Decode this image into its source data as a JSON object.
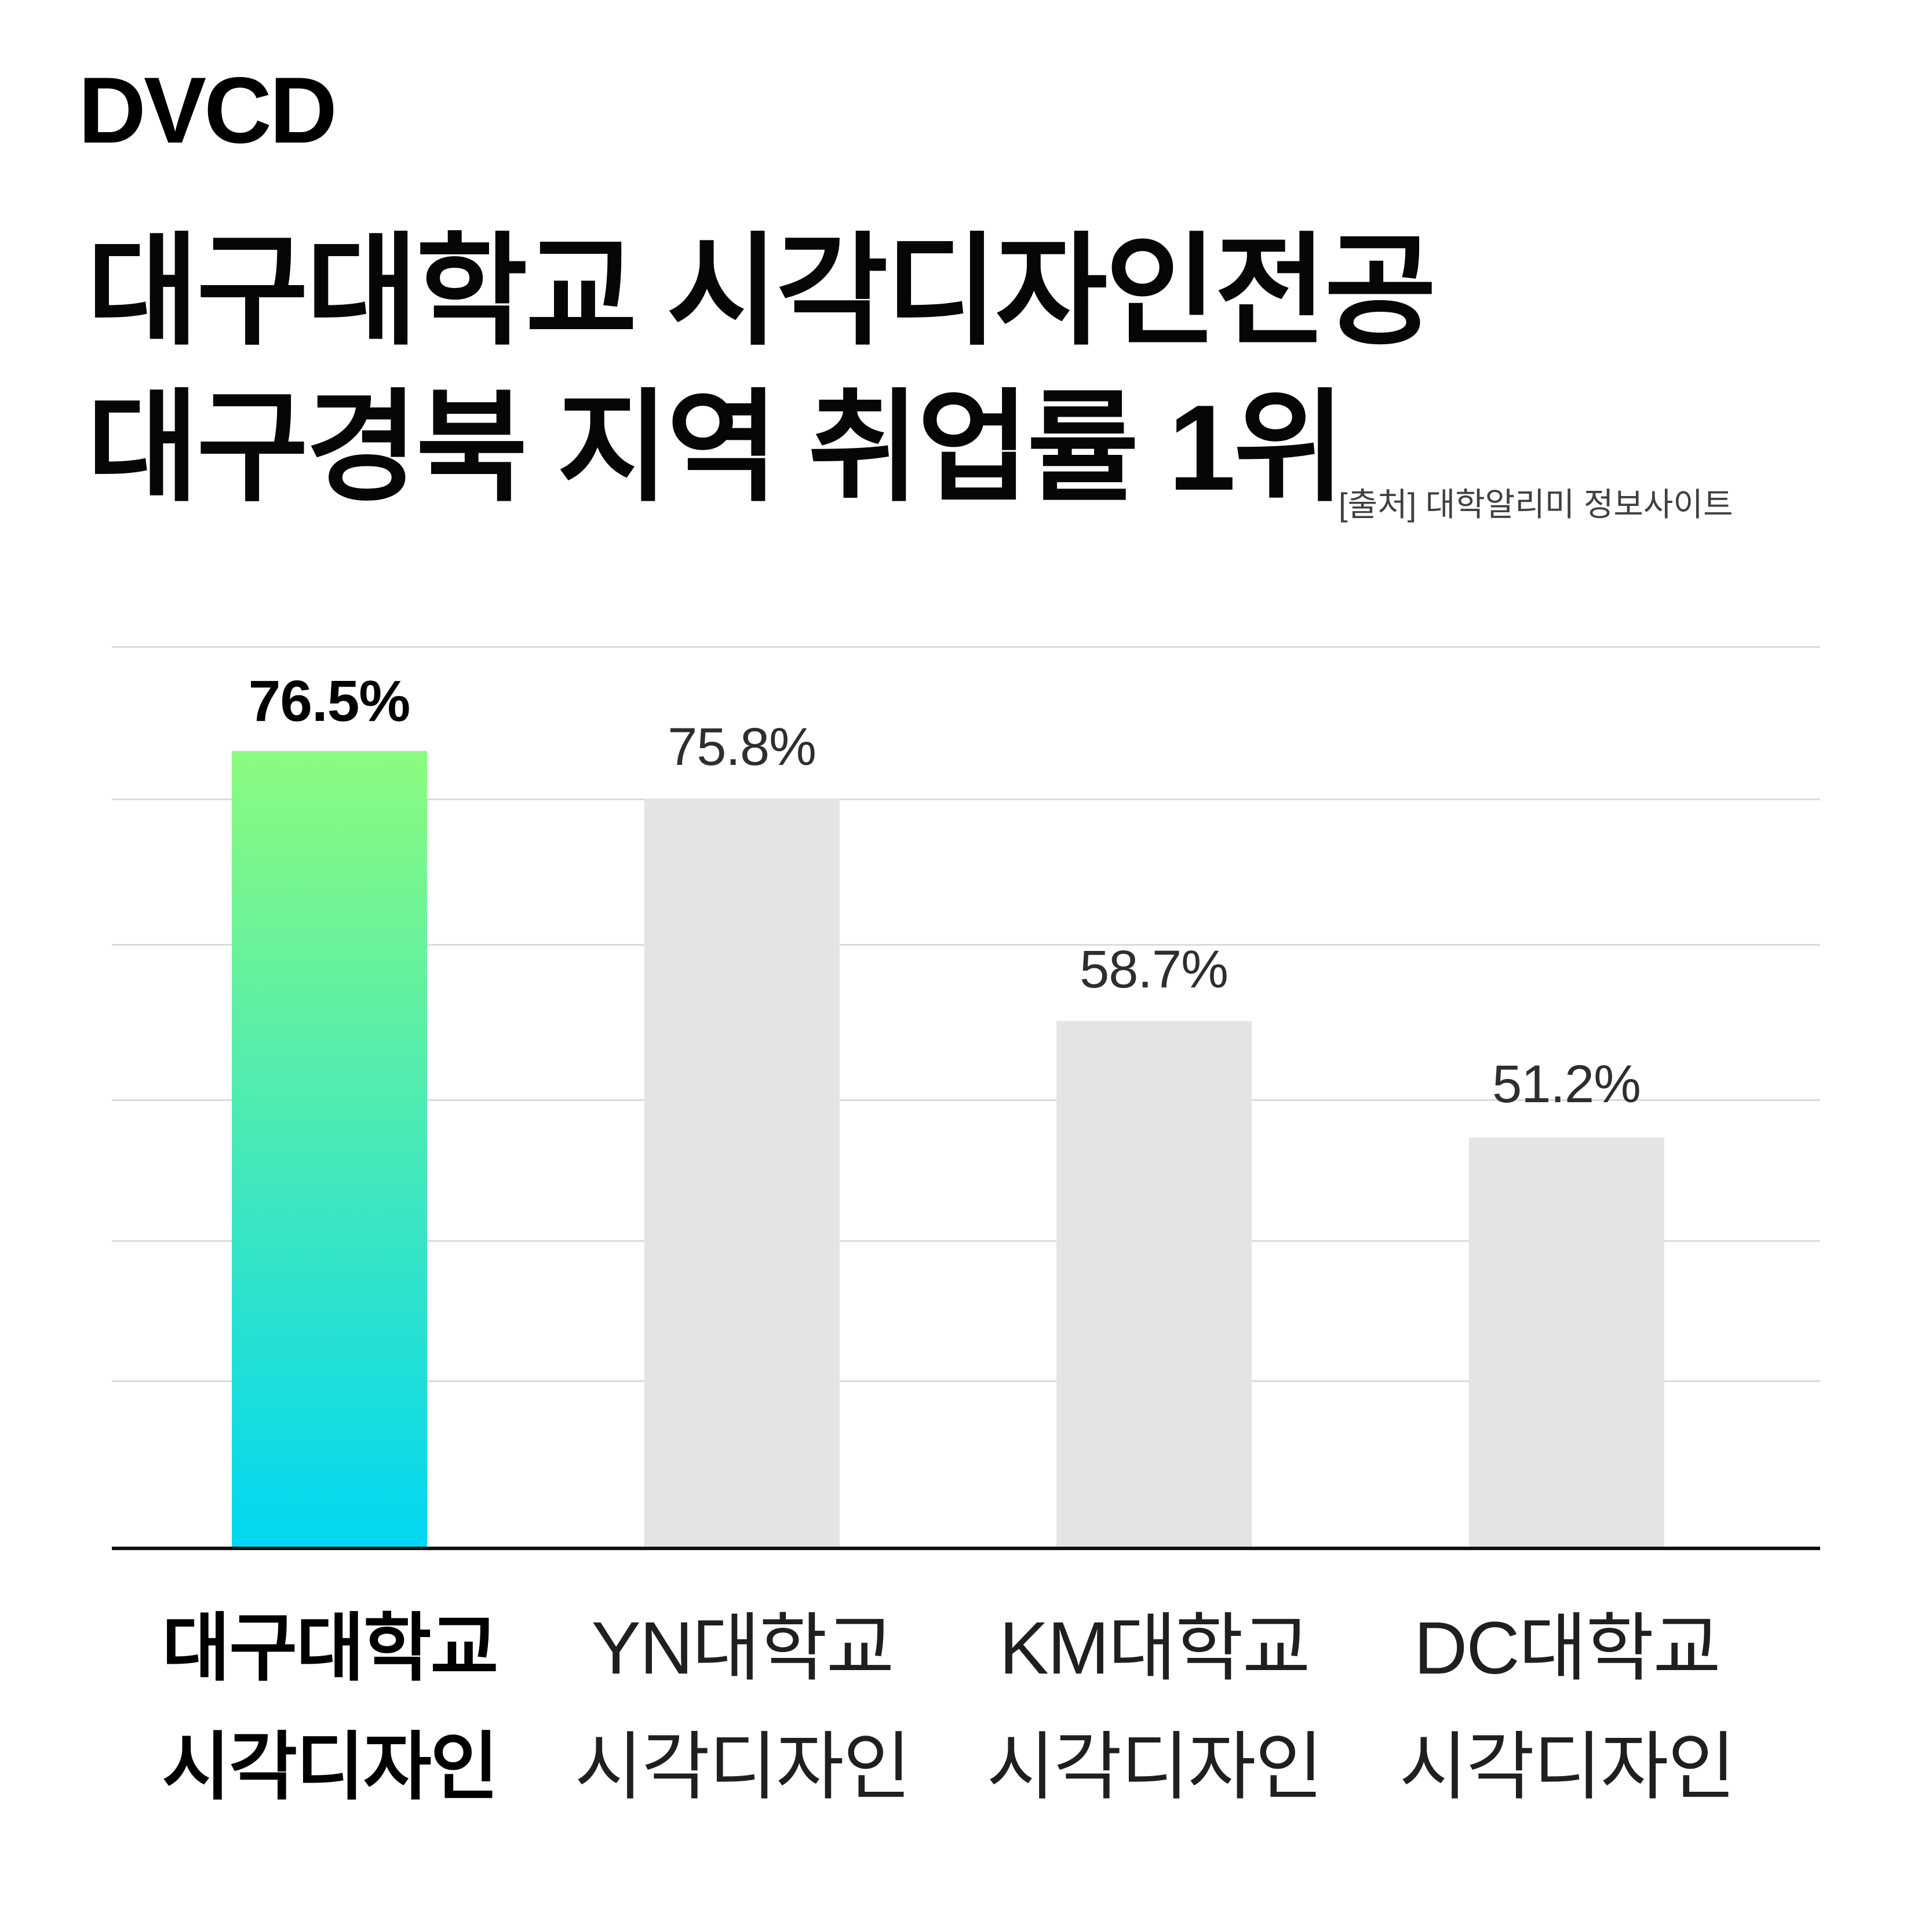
{
  "logo": "DVCD",
  "title": {
    "line1": "대구대학교 시각디자인전공",
    "line2": "대구경북 지역 취업률 1위"
  },
  "source": "[출처] 대학알리미 정보사이트",
  "colors": {
    "highlight_gradient_top": "#8CFB7E",
    "highlight_gradient_bottom": "#00D7F2",
    "bar_gray": "#E4E4E4",
    "gridline": "#DBDBDB",
    "axis": "#111111"
  },
  "chart_data": {
    "type": "bar",
    "title": "대구대학교 시각디자인전공 대구경북 지역 취업률 1위",
    "source": "[출처] 대학알리미 정보사이트",
    "categories": [
      "대구대학교 시각디자인",
      "YN대학교 시각디자인",
      "KM대학교 시각디자인",
      "DC대학교 시각디자인"
    ],
    "values": [
      76.5,
      75.8,
      58.7,
      51.2
    ],
    "unit": "%",
    "highlighted_index": 0,
    "grid": true,
    "legend_position": "none",
    "bar_height_pct": [
      88.4,
      83.1,
      58.4,
      45.5
    ]
  },
  "bars": [
    {
      "value_label": "76.5%",
      "label_line1": "대구대학교",
      "label_line2": "시각디자인"
    },
    {
      "value_label": "75.8%",
      "label_line1": "YN대학교",
      "label_line2": "시각디자인"
    },
    {
      "value_label": "58.7%",
      "label_line1": "KM대학교",
      "label_line2": "시각디자인"
    },
    {
      "value_label": "51.2%",
      "label_line1": "DC대학교",
      "label_line2": "시각디자인"
    }
  ]
}
